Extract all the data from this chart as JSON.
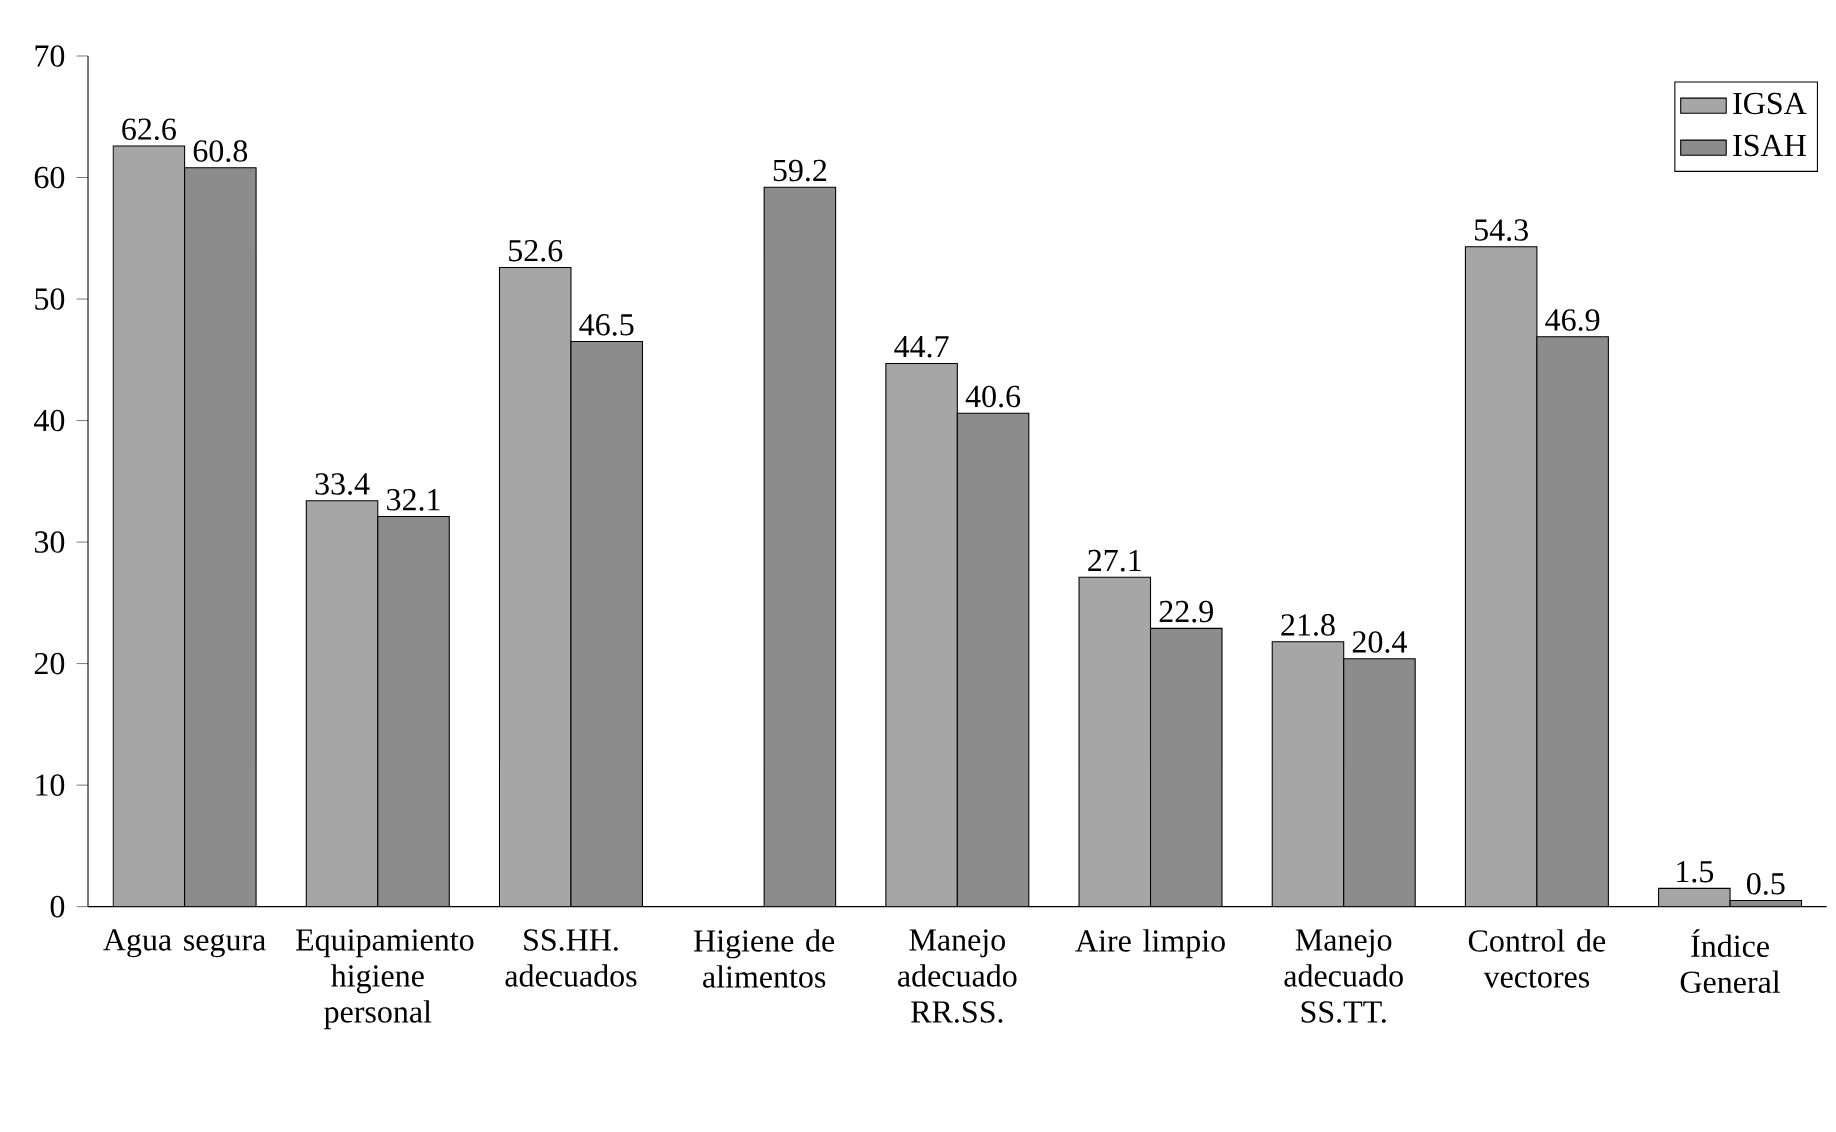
{
  "chart_data": {
    "type": "bar",
    "categories": [
      "Agua segura",
      "Equipamiento higiene personal",
      "SS.HH. adecuados",
      "Higiene de alimentos",
      "Manejo adecuado RR.SS.",
      "Aire limpio",
      "Manejo adecuado SS.TT.",
      "Control de vectores",
      "Índice General"
    ],
    "series": [
      {
        "name": "IGSA",
        "color": "#a6a6a6",
        "values": [
          62.6,
          33.4,
          52.6,
          null,
          44.7,
          27.1,
          21.8,
          54.3,
          1.5
        ]
      },
      {
        "name": "ISAH",
        "color": "#8c8c8c",
        "values": [
          60.8,
          32.1,
          46.5,
          59.2,
          40.6,
          22.9,
          20.4,
          46.9,
          0.5
        ]
      }
    ],
    "ylim": [
      0,
      70
    ],
    "yticks": [
      0,
      10,
      20,
      30,
      40,
      50,
      60,
      70
    ],
    "data_labels": true,
    "legend": "top right",
    "grid": false
  }
}
